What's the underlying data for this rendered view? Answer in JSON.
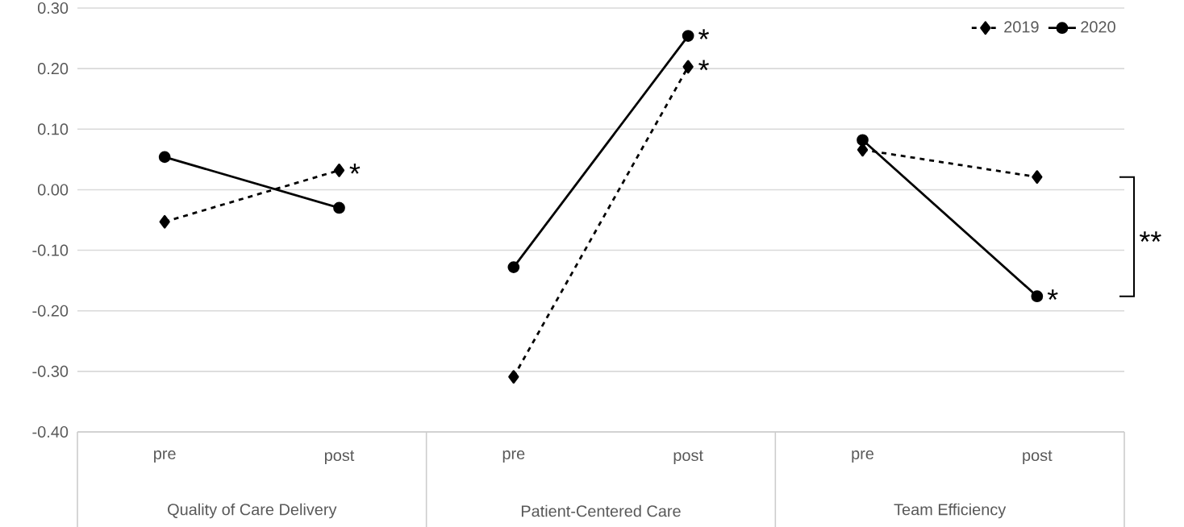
{
  "chart_data": {
    "type": "line",
    "categories": [
      "pre",
      "post",
      "pre",
      "post",
      "pre",
      "post"
    ],
    "series": [
      {
        "name": "2019",
        "color": "#000000",
        "marker": "diamond",
        "line_style": "dashed",
        "values": [
          -0.053,
          0.032,
          -0.309,
          0.203,
          0.066,
          0.021
        ]
      },
      {
        "name": "2020",
        "color": "#000000",
        "marker": "circle",
        "line_style": "solid",
        "values": [
          0.054,
          -0.03,
          -0.128,
          0.254,
          0.082,
          -0.176
        ]
      }
    ],
    "ylim": [
      -0.4,
      0.3
    ],
    "yticks": [
      {
        "value": -0.4,
        "label": "-0.40"
      },
      {
        "value": -0.3,
        "label": "-0.30"
      },
      {
        "value": -0.2,
        "label": "-0.20"
      },
      {
        "value": -0.1,
        "label": "-0.10"
      },
      {
        "value": 0,
        "label": "0.00"
      },
      {
        "value": 0.1,
        "label": "0.10"
      },
      {
        "value": 0.2,
        "label": "0.20"
      },
      {
        "value": 0.3,
        "label": "0.30"
      }
    ],
    "grid": "y",
    "legend": "top right",
    "annotations": [
      "Quality of Care Delivery",
      "Patient-Centered Care",
      "Team Efficiency",
      "*",
      "*",
      "*",
      "*",
      "**"
    ]
  }
}
